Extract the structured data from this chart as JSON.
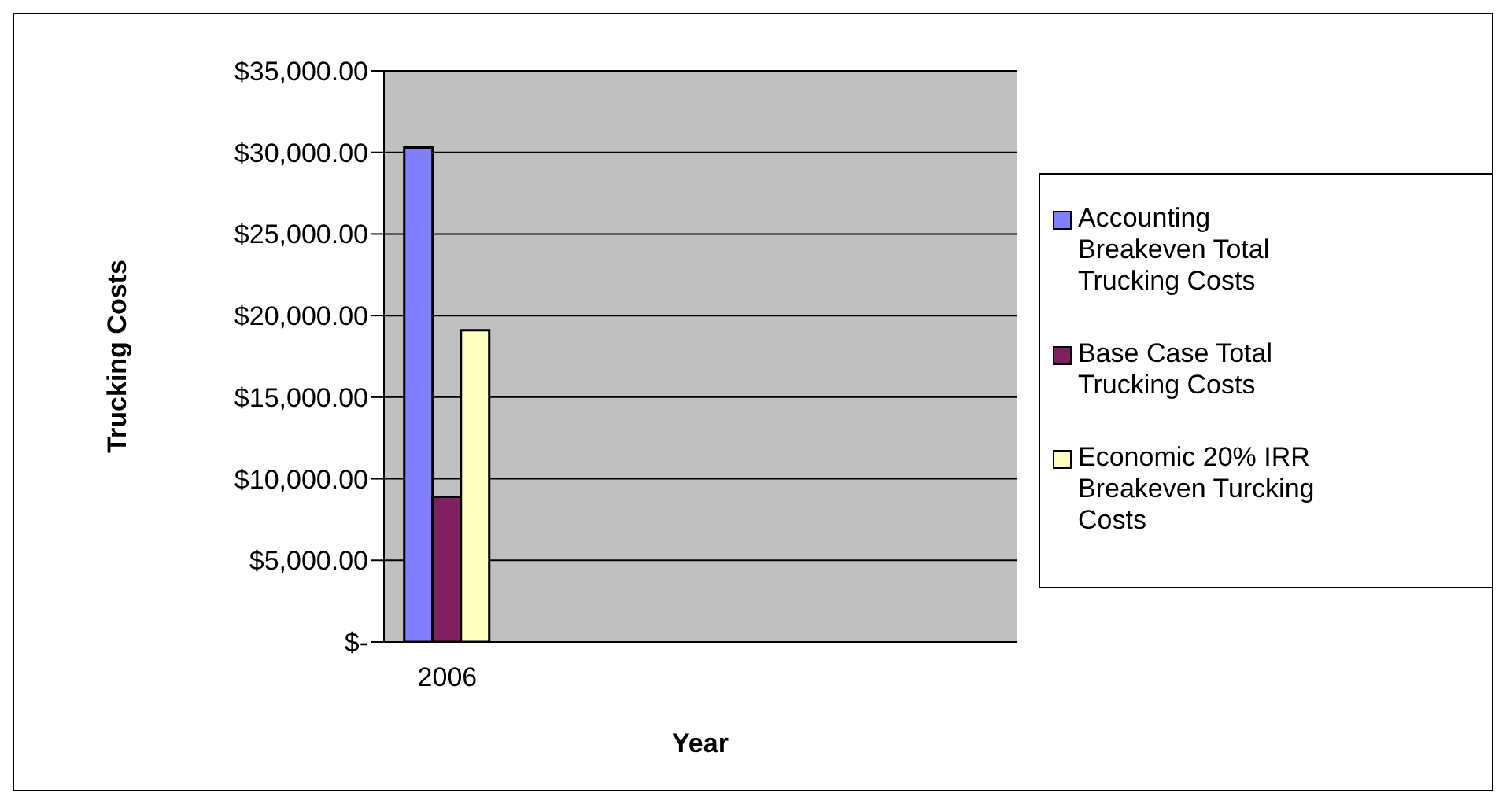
{
  "chart_data": {
    "type": "bar",
    "xlabel": "Year",
    "ylabel": "Trucking Costs",
    "categories": [
      "2006",
      null,
      null,
      null,
      null
    ],
    "series": [
      {
        "name": "Accounting Breakeven Total Trucking Costs",
        "color": "#8080ff",
        "values": [
          30300,
          null,
          null,
          null,
          null
        ]
      },
      {
        "name": "Base Case Total Trucking Costs",
        "color": "#802060",
        "values": [
          8900,
          null,
          null,
          null,
          null
        ]
      },
      {
        "name": "Economic 20% IRR Breakeven Turcking Costs",
        "color": "#ffffc0",
        "values": [
          19100,
          null,
          null,
          null,
          null
        ]
      }
    ],
    "ylim": [
      0,
      35000
    ],
    "yticks": [
      {
        "value": 0,
        "label": "$-"
      },
      {
        "value": 5000,
        "label": "$5,000.00"
      },
      {
        "value": 10000,
        "label": "$10,000.00"
      },
      {
        "value": 15000,
        "label": "$15,000.00"
      },
      {
        "value": 20000,
        "label": "$20,000.00"
      },
      {
        "value": 25000,
        "label": "$25,000.00"
      },
      {
        "value": 30000,
        "label": "$30,000.00"
      },
      {
        "value": 35000,
        "label": "$35,000.00"
      }
    ],
    "grid": "y",
    "legend": "right"
  }
}
